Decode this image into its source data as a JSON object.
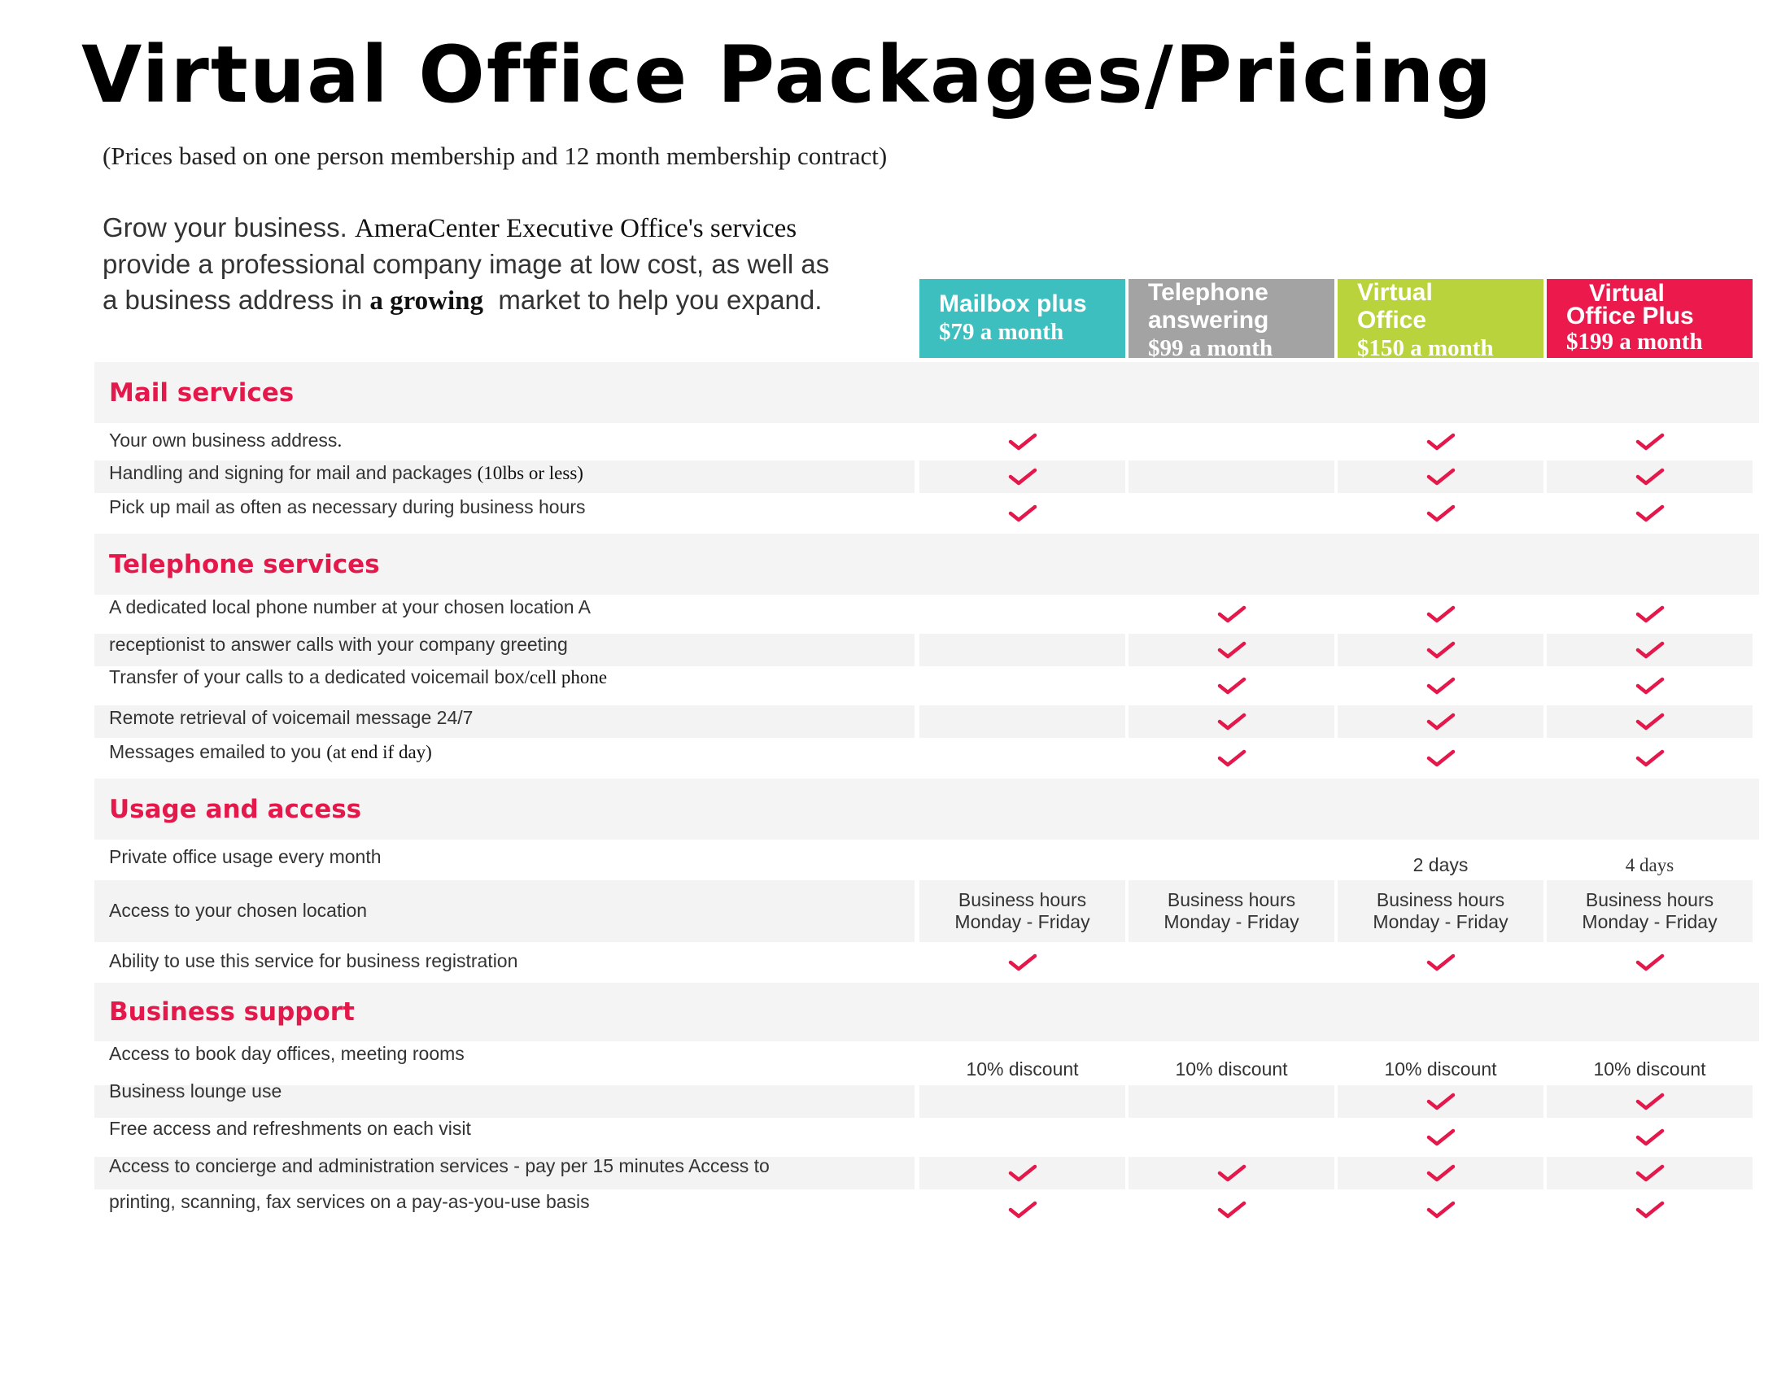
{
  "title": "Virtual Office Packages/Pricing",
  "subtitle": "(Prices based on one person membership and 12 month membership contract)",
  "intro": {
    "lead": "Grow your business. ",
    "company": "AmeraCenter Executive Office's services",
    "line2": "provide a professional company image at low cost, as well as",
    "line3a": "a business address in ",
    "line3b": "a growing",
    "line3c": "  market to help you expand."
  },
  "packages": [
    {
      "name_line1": "Mailbox plus",
      "name_line2": "",
      "price": "$79 a month",
      "color": "#3dbfbf"
    },
    {
      "name_line1": "Telephone",
      "name_line2": "answering",
      "price": "$99 a month",
      "color": "#a3a3a3"
    },
    {
      "name_line1": "Virtual",
      "name_line2": "Office",
      "price": "$150 a month",
      "color": "#b8d33b"
    },
    {
      "name_line1": "Virtual",
      "name_line2": "Office Plus",
      "price": "$199 a month",
      "color": "#ec1a4c"
    }
  ],
  "sections": {
    "mail": {
      "title": "Mail services",
      "rows": [
        {
          "label": "Your own business address",
          "label_serif": "."
        },
        {
          "label": "Handling and signing for mail and packages ",
          "label_serif": "(10lbs or less)"
        },
        {
          "label": "Pick up mail as often as necessary during business hours",
          "label_serif": ""
        }
      ]
    },
    "telephone": {
      "title": "Telephone services",
      "rows": [
        {
          "label": "A dedicated local phone number at your chosen location A",
          "label_serif": ""
        },
        {
          "label": "receptionist to answer calls with your company greeting",
          "label_serif": ""
        },
        {
          "label": "Transfer of your calls to a dedicated voicemail box",
          "label_serif": "/cell phone"
        },
        {
          "label": "Remote retrieval of voicemail message 24/7",
          "label_serif": ""
        },
        {
          "label": "Messages emailed to you ",
          "label_serif": "(at end if day)"
        }
      ]
    },
    "usage": {
      "title": "Usage and access",
      "rows": [
        {
          "label": "Private office usage every month",
          "values": [
            "",
            "",
            "2 days",
            "4 days"
          ]
        },
        {
          "label": "Access to your chosen location",
          "values_line1": [
            "Business hours",
            "Business hours",
            "Business hours",
            "Business hours"
          ],
          "values_line2": [
            "Monday - Friday",
            "Monday - Friday",
            "Monday - Friday",
            "Monday - Friday"
          ]
        },
        {
          "label": "Ability to use this service for business registration",
          "label_serif": ""
        }
      ]
    },
    "support": {
      "title": "Business support",
      "rows": [
        {
          "label": "Access to book day offices, meeting rooms",
          "values": [
            "10% discount",
            "10% discount",
            "10% discount",
            "10% discount"
          ]
        },
        {
          "label": "Business lounge use",
          "label_serif": ""
        },
        {
          "label": "Free access and refreshments on each visit",
          "label_serif": ""
        },
        {
          "label": "Access to concierge and administration services - pay per 15 minutes Access to",
          "label_serif": ""
        },
        {
          "label": "printing, scanning, fax services on a pay-as-you-use basis",
          "label_serif": ""
        }
      ]
    }
  },
  "checks": {
    "mail": [
      [
        true,
        false,
        true,
        true
      ],
      [
        true,
        false,
        true,
        true
      ],
      [
        true,
        false,
        true,
        true
      ]
    ],
    "telephone": [
      [
        false,
        true,
        true,
        true
      ],
      [
        false,
        true,
        true,
        true
      ],
      [
        false,
        true,
        true,
        true
      ],
      [
        false,
        true,
        true,
        true
      ],
      [
        false,
        true,
        true,
        true
      ]
    ],
    "usage_registration": [
      true,
      false,
      true,
      true
    ],
    "support": [
      [
        false,
        false,
        true,
        true
      ],
      [
        false,
        false,
        true,
        true
      ],
      [
        true,
        true,
        true,
        true
      ],
      [
        true,
        true,
        true,
        true
      ]
    ]
  },
  "colors": {
    "accent": "#e4184a",
    "band": "#f4f4f4"
  }
}
